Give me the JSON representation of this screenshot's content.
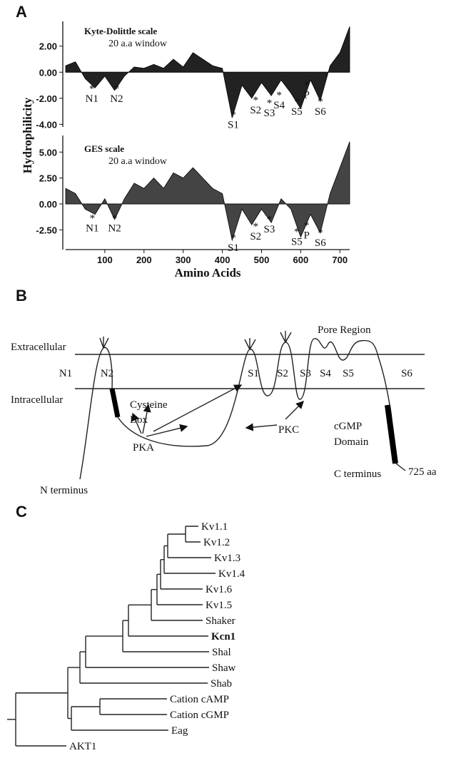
{
  "chart_data": [
    {
      "type": "area",
      "panel": "A",
      "title": "Kyte-Dolittle scale",
      "subtitle": "20 a.a window",
      "ylabel": "Hydrophilicity",
      "color": "#222222",
      "marker": "*",
      "x": [
        0,
        25,
        50,
        75,
        100,
        125,
        150,
        175,
        200,
        225,
        250,
        275,
        300,
        325,
        350,
        375,
        400,
        425,
        450,
        475,
        500,
        525,
        550,
        575,
        600,
        625,
        650,
        675,
        700,
        725
      ],
      "values": [
        0.5,
        0.8,
        -0.5,
        -1.2,
        -0.3,
        -1.4,
        -0.3,
        0.4,
        0.3,
        0.6,
        0.3,
        1.0,
        0.4,
        1.5,
        1.0,
        0.5,
        0.3,
        -3.5,
        -1.0,
        -2.0,
        -0.8,
        -1.8,
        -0.6,
        -1.6,
        -2.8,
        -0.6,
        -2.2,
        0.5,
        1.5,
        3.5
      ],
      "xlim": [
        0,
        725
      ],
      "ylim": [
        -4.2,
        3.9
      ],
      "yticks": [
        {
          "value": 2,
          "label": "2.00"
        },
        {
          "value": 0,
          "label": "0.00"
        },
        {
          "value": -2,
          "label": "-2.00"
        },
        {
          "value": -4,
          "label": "-4.00"
        }
      ],
      "annotations": [
        {
          "text": "N1",
          "x": 67,
          "y": -2.0
        },
        {
          "text": "N2",
          "x": 130,
          "y": -2.0
        },
        {
          "text": "S1",
          "x": 428,
          "y": -4.0
        },
        {
          "text": "S2",
          "x": 485,
          "y": -2.9
        },
        {
          "text": "S3",
          "x": 520,
          "y": -3.1
        },
        {
          "text": "S4",
          "x": 545,
          "y": -2.5
        },
        {
          "text": "S5",
          "x": 590,
          "y": -3.0
        },
        {
          "text": "P",
          "x": 615,
          "y": -1.7
        },
        {
          "text": "S6",
          "x": 650,
          "y": -3.0
        }
      ]
    },
    {
      "type": "area",
      "title": "GES scale",
      "subtitle": "20 a.a window",
      "xlabel": "Amino Acids",
      "color": "#444444",
      "marker": "*",
      "x": [
        0,
        25,
        50,
        75,
        100,
        125,
        150,
        175,
        200,
        225,
        250,
        275,
        300,
        325,
        350,
        375,
        400,
        425,
        450,
        475,
        500,
        525,
        550,
        575,
        600,
        625,
        650,
        675,
        700,
        725
      ],
      "values": [
        1.5,
        1.0,
        -0.5,
        -1.0,
        0.5,
        -1.5,
        0.5,
        2.0,
        1.5,
        2.5,
        1.5,
        3.0,
        2.5,
        3.5,
        2.5,
        1.5,
        1.0,
        -3.5,
        -0.5,
        -2.0,
        -0.5,
        -1.8,
        0.5,
        -0.5,
        -3.2,
        -1.0,
        -2.8,
        1.0,
        3.5,
        6.0
      ],
      "xlim": [
        0,
        725
      ],
      "ylim": [
        -4.4,
        6.6
      ],
      "xticks": [
        100,
        200,
        300,
        400,
        500,
        600,
        700
      ],
      "yticks": [
        {
          "value": 5,
          "label": "5.00"
        },
        {
          "value": 2.5,
          "label": "2.50"
        },
        {
          "value": 0,
          "label": "0.00"
        },
        {
          "value": -2.5,
          "label": "-2.50"
        }
      ],
      "annotations": [
        {
          "text": "N1",
          "x": 68,
          "y": -2.3
        },
        {
          "text": "N2",
          "x": 125,
          "y": -2.3
        },
        {
          "text": "S1",
          "x": 428,
          "y": -4.2
        },
        {
          "text": "S2",
          "x": 485,
          "y": -3.1
        },
        {
          "text": "S3",
          "x": 520,
          "y": -2.4
        },
        {
          "text": "S5",
          "x": 590,
          "y": -3.6
        },
        {
          "text": "P",
          "x": 615,
          "y": -3.0
        },
        {
          "text": "S6",
          "x": 650,
          "y": -3.7
        }
      ]
    }
  ],
  "diagram": {
    "panel": "B",
    "extracellular": "Extracellular",
    "intracellular": "Intracellular",
    "segments": [
      "N1",
      "N2",
      "S1",
      "S2",
      "S3",
      "S4",
      "S5",
      "S6"
    ],
    "pore": "Pore Region",
    "cysteine": [
      "Cysteine",
      "Box"
    ],
    "pkc": "PKC",
    "pka": "PKA",
    "cgmp": [
      "cGMP",
      "Domain"
    ],
    "c_terminus": "C terminus",
    "length": "725 aa",
    "n_terminus": "N terminus"
  },
  "tree": {
    "panel": "C",
    "leaves": [
      "Kv1.1",
      "Kv1.2",
      "Kv1.3",
      "Kv1.4",
      "Kv1.6",
      "Kv1.5",
      "Shaker",
      "Kcn1",
      "Shal",
      "Shaw",
      "Shab",
      "Cation  cAMP",
      "Cation cGMP",
      "Eag",
      "AKT1"
    ]
  }
}
